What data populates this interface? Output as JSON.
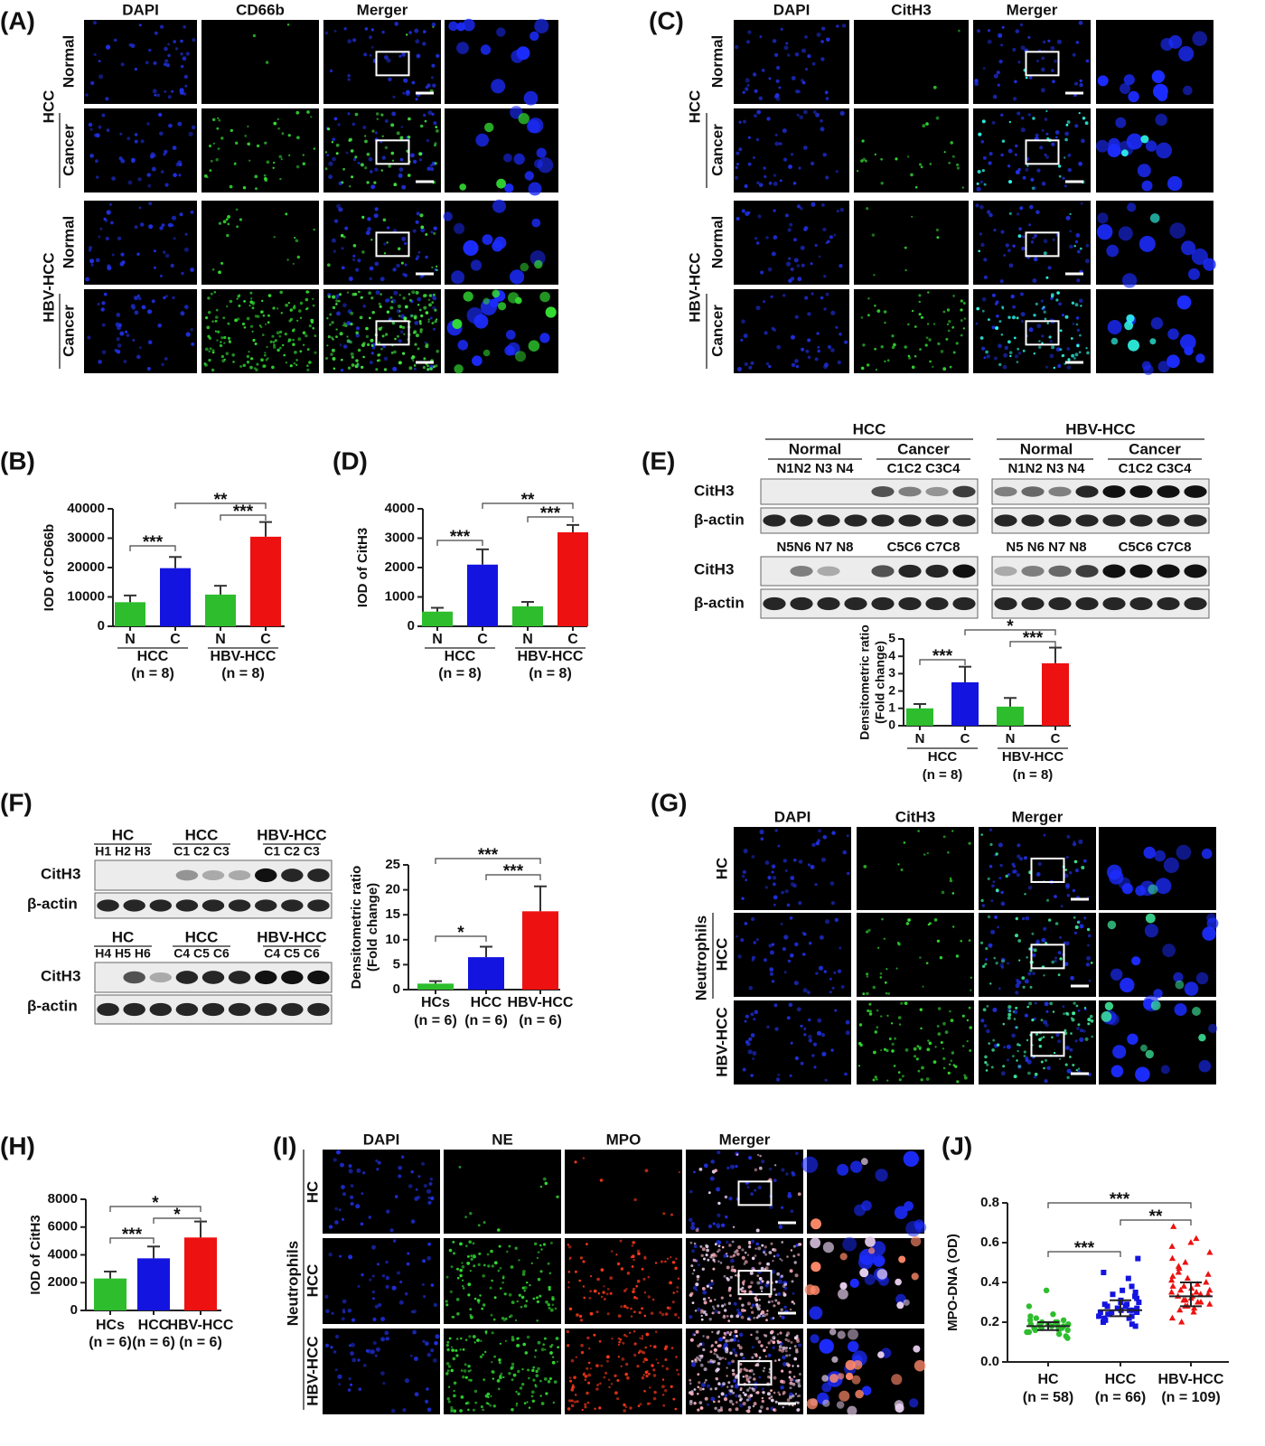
{
  "figure": {
    "A": {
      "label": "(A)",
      "columns": [
        "DAPI",
        "CD66b",
        "Merger"
      ],
      "groups": [
        {
          "name": "HCC",
          "rows": [
            "Normal",
            "Cancer"
          ]
        },
        {
          "name": "HBV-HCC",
          "rows": [
            "Normal",
            "Cancer"
          ]
        }
      ]
    },
    "C": {
      "label": "(C)",
      "columns": [
        "DAPI",
        "CitH3",
        "Merger"
      ],
      "groups": [
        {
          "name": "HCC",
          "rows": [
            "Normal",
            "Cancer"
          ]
        },
        {
          "name": "HBV-HCC",
          "rows": [
            "Normal",
            "Cancer"
          ]
        }
      ]
    },
    "E_blot": {
      "label": "(E)",
      "rows": [
        "CitH3",
        "β-actin"
      ],
      "blots": [
        {
          "group": "HCC",
          "subgroups": [
            "Normal",
            "Cancer"
          ],
          "lanes_top": [
            "N1N2 N3 N4",
            "C1C2 C3C4"
          ],
          "lanes_bottom": [
            "N5N6 N7 N8",
            "C5C6 C7C8"
          ]
        },
        {
          "group": "HBV-HCC",
          "subgroups": [
            "Normal",
            "Cancer"
          ],
          "lanes_top": [
            "N1N2 N3 N4",
            "C1C2 C3C4"
          ],
          "lanes_bottom": [
            "N5 N6 N7 N8",
            "C5C6 C7C8"
          ]
        }
      ]
    },
    "F_blot": {
      "label": "(F)",
      "rows": [
        "CitH3",
        "β-actin"
      ],
      "halves": [
        {
          "groups": [
            "HC",
            "HCC",
            "HBV-HCC"
          ],
          "lanes": [
            "H1 H2 H3",
            "C1 C2 C3",
            "C1 C2 C3"
          ]
        },
        {
          "groups": [
            "HC",
            "HCC",
            "HBV-HCC"
          ],
          "lanes": [
            "H4 H5 H6",
            "C4 C5 C6",
            "C4 C5 C6"
          ]
        }
      ]
    },
    "G": {
      "label": "(G)",
      "columns": [
        "DAPI",
        "CitH3",
        "Merger"
      ],
      "side": "Neutrophils",
      "rows": [
        "HC",
        "HCC",
        "HBV-HCC"
      ]
    },
    "I": {
      "label": "(I)",
      "columns": [
        "DAPI",
        "NE",
        "MPO",
        "Merger"
      ],
      "side": "Neutrophils",
      "rows": [
        "HC",
        "HCC",
        "HBV-HCC"
      ]
    }
  },
  "chart_data": [
    {
      "type": "bar",
      "label": "(B)",
      "ylabel": [
        "IOD of CD66b"
      ],
      "categories": [
        "N",
        "C",
        "N",
        "C"
      ],
      "groups": [
        "HCC",
        "HBV-HCC"
      ],
      "n_labels": [
        "(n = 8)",
        "(n = 8)"
      ],
      "values": [
        8200,
        19800,
        10800,
        30500
      ],
      "errors": [
        2300,
        3800,
        3000,
        5000
      ],
      "colors": [
        "#2dbd2d",
        "#1414e0",
        "#2dbd2d",
        "#ee1111"
      ],
      "ylim": [
        0,
        40000
      ],
      "yticks": [
        0,
        10000,
        20000,
        30000,
        40000
      ],
      "annotations": [
        "***",
        "**",
        "***"
      ]
    },
    {
      "type": "bar",
      "label": "(D)",
      "ylabel": [
        "IOD of CitH3"
      ],
      "categories": [
        "N",
        "C",
        "N",
        "C"
      ],
      "groups": [
        "HCC",
        "HBV-HCC"
      ],
      "n_labels": [
        "(n = 8)",
        "(n = 8)"
      ],
      "values": [
        500,
        2100,
        680,
        3200
      ],
      "errors": [
        130,
        520,
        150,
        250
      ],
      "colors": [
        "#2dbd2d",
        "#1414e0",
        "#2dbd2d",
        "#ee1111"
      ],
      "ylim": [
        0,
        4000
      ],
      "yticks": [
        0,
        1000,
        2000,
        3000,
        4000
      ],
      "annotations": [
        "***",
        "**",
        "***"
      ]
    },
    {
      "type": "bar",
      "ylabel": [
        "Densitometric ratio",
        "(Fold change)"
      ],
      "categories": [
        "N",
        "C",
        "N",
        "C"
      ],
      "groups": [
        "HCC",
        "HBV-HCC"
      ],
      "n_labels": [
        "(n = 8)",
        "(n = 8)"
      ],
      "values": [
        1.0,
        2.5,
        1.1,
        3.6
      ],
      "errors": [
        0.25,
        0.9,
        0.5,
        0.9
      ],
      "colors": [
        "#2dbd2d",
        "#1414e0",
        "#2dbd2d",
        "#ee1111"
      ],
      "ylim": [
        0,
        5
      ],
      "yticks": [
        0,
        1,
        2,
        3,
        4,
        5
      ],
      "annotations": [
        "***",
        "*",
        "***"
      ]
    },
    {
      "type": "bar",
      "ylabel": [
        "Densitometric ratio",
        "(Fold change)"
      ],
      "categories": [
        "HCs",
        "HCC",
        "HBV-HCC"
      ],
      "n_labels": [
        "(n = 6)",
        "(n = 6)",
        "(n = 6)"
      ],
      "values": [
        1.2,
        6.5,
        15.7
      ],
      "errors": [
        0.5,
        2.1,
        5.0
      ],
      "colors": [
        "#2dbd2d",
        "#1414e0",
        "#ee1111"
      ],
      "ylim": [
        0,
        25
      ],
      "yticks": [
        0,
        5,
        10,
        15,
        20,
        25
      ],
      "annotations": [
        "*",
        "***",
        "***"
      ]
    },
    {
      "type": "bar",
      "label": "(H)",
      "ylabel": [
        "IOD of CitH3"
      ],
      "categories": [
        "HCs",
        "HCC",
        "HBV-HCC"
      ],
      "n_labels": [
        "(n = 6)",
        "(n = 6)",
        "(n = 6)"
      ],
      "values": [
        2300,
        3750,
        5250
      ],
      "errors": [
        500,
        850,
        1150
      ],
      "colors": [
        "#2dbd2d",
        "#1414e0",
        "#ee1111"
      ],
      "ylim": [
        0,
        8000
      ],
      "yticks": [
        0,
        2000,
        4000,
        6000,
        8000
      ],
      "annotations": [
        "***",
        "*",
        "*"
      ]
    },
    {
      "type": "scatter",
      "label": "(J)",
      "ylabel": [
        "MPO-DNA (OD)"
      ],
      "categories": [
        "HC",
        "HCC",
        "HBV-HCC"
      ],
      "n_labels": [
        "(n = 58)",
        "(n = 66)",
        "(n = 109)"
      ],
      "colors": [
        "#2dbd2d",
        "#1414e0",
        "#ee1111"
      ],
      "markers": [
        "circle",
        "square",
        "triangle"
      ],
      "values": [
        [
          0.18,
          0.17,
          0.2,
          0.16,
          0.19,
          0.22,
          0.15,
          0.18,
          0.14,
          0.21,
          0.17,
          0.19,
          0.16,
          0.24,
          0.13,
          0.18,
          0.2,
          0.17,
          0.15,
          0.19,
          0.36,
          0.28,
          0.23,
          0.12,
          0.18,
          0.16,
          0.21,
          0.19,
          0.17,
          0.2
        ],
        [
          0.25,
          0.27,
          0.23,
          0.29,
          0.26,
          0.31,
          0.22,
          0.24,
          0.28,
          0.35,
          0.2,
          0.26,
          0.3,
          0.33,
          0.19,
          0.25,
          0.27,
          0.38,
          0.23,
          0.21,
          0.29,
          0.42,
          0.45,
          0.52,
          0.24,
          0.26,
          0.28,
          0.32,
          0.36,
          0.22,
          0.25,
          0.27,
          0.18,
          0.3,
          0.34
        ],
        [
          0.33,
          0.35,
          0.3,
          0.38,
          0.28,
          0.42,
          0.45,
          0.27,
          0.31,
          0.36,
          0.4,
          0.5,
          0.55,
          0.6,
          0.68,
          0.25,
          0.22,
          0.34,
          0.37,
          0.29,
          0.32,
          0.47,
          0.52,
          0.39,
          0.44,
          0.26,
          0.3,
          0.33,
          0.58,
          0.41,
          0.36,
          0.31,
          0.2,
          0.48,
          0.62,
          0.35,
          0.28,
          0.43,
          0.38,
          0.34
        ]
      ],
      "medians": [
        0.18,
        0.26,
        0.33
      ],
      "lower": [
        0.16,
        0.23,
        0.28
      ],
      "upper": [
        0.2,
        0.31,
        0.4
      ],
      "ylim": [
        0,
        0.8
      ],
      "yticks": [
        {
          "value": 0,
          "label": "0.0"
        },
        0.2,
        0.4,
        0.6,
        0.8
      ],
      "annotations": [
        "***",
        "**",
        "***"
      ]
    }
  ]
}
